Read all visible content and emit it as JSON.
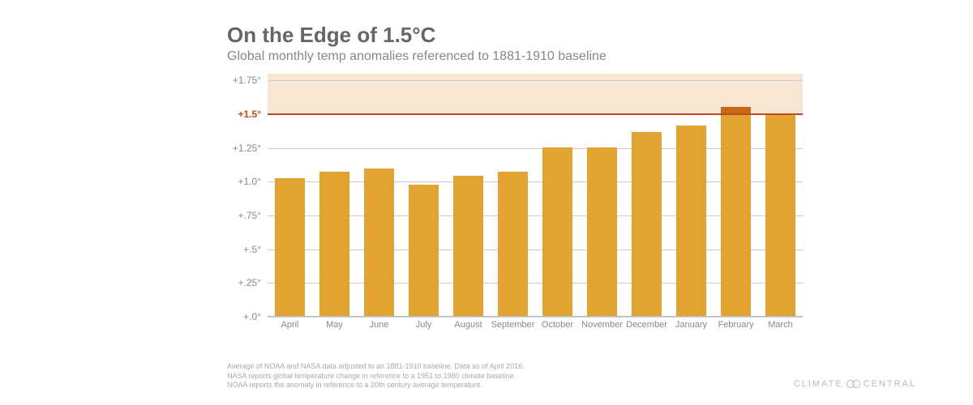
{
  "title": "On the Edge of 1.5°C",
  "subtitle": "Global monthly temp anomalies referenced to 1881-1910 baseline",
  "chart": {
    "type": "bar",
    "ymin": 0.0,
    "ymax": 1.8,
    "ytick_step": 0.25,
    "ytick_labels": [
      "+.0°",
      "+.25°",
      "+.5°",
      "+.75°",
      "+1.0°",
      "+1.25°",
      "+1.5°",
      "+1.75°"
    ],
    "ytick_values": [
      0.0,
      0.25,
      0.5,
      0.75,
      1.0,
      1.25,
      1.5,
      1.75
    ],
    "threshold_value": 1.5,
    "threshold_label": "+1.5°",
    "threshold_color": "#c04a1a",
    "shade_band": {
      "from": 1.5,
      "to": 1.8,
      "color": "#f6e2cc",
      "opacity": 0.85
    },
    "grid_color": "#cccccc",
    "axis_color": "#bbbbbb",
    "background_color": "#ffffff",
    "bar_color": "#e2a330",
    "bar_cap_color": "#c8661a",
    "bar_width_ratio": 0.68,
    "categories": [
      "April",
      "May",
      "June",
      "July",
      "August",
      "September",
      "October",
      "November",
      "December",
      "January",
      "February",
      "March"
    ],
    "values": [
      1.02,
      1.07,
      1.09,
      0.97,
      1.04,
      1.07,
      1.25,
      1.25,
      1.36,
      1.41,
      1.55,
      1.5
    ],
    "title_fontsize": 26,
    "subtitle_fontsize": 16,
    "ylabel_fontsize": 12,
    "xlabel_fontsize": 11
  },
  "footnotes": [
    "Average of NOAA and NASA data adjusted to an 1881-1910 baseline. Data as of April 2016.",
    "NASA reports global temperature change in reference to a 1951 to 1980 climate baseline.",
    "NOAA reports the anomaly in reference to a 20th century average temperature."
  ],
  "attribution": {
    "left": "CLIMATE",
    "right": "CENTRAL"
  }
}
